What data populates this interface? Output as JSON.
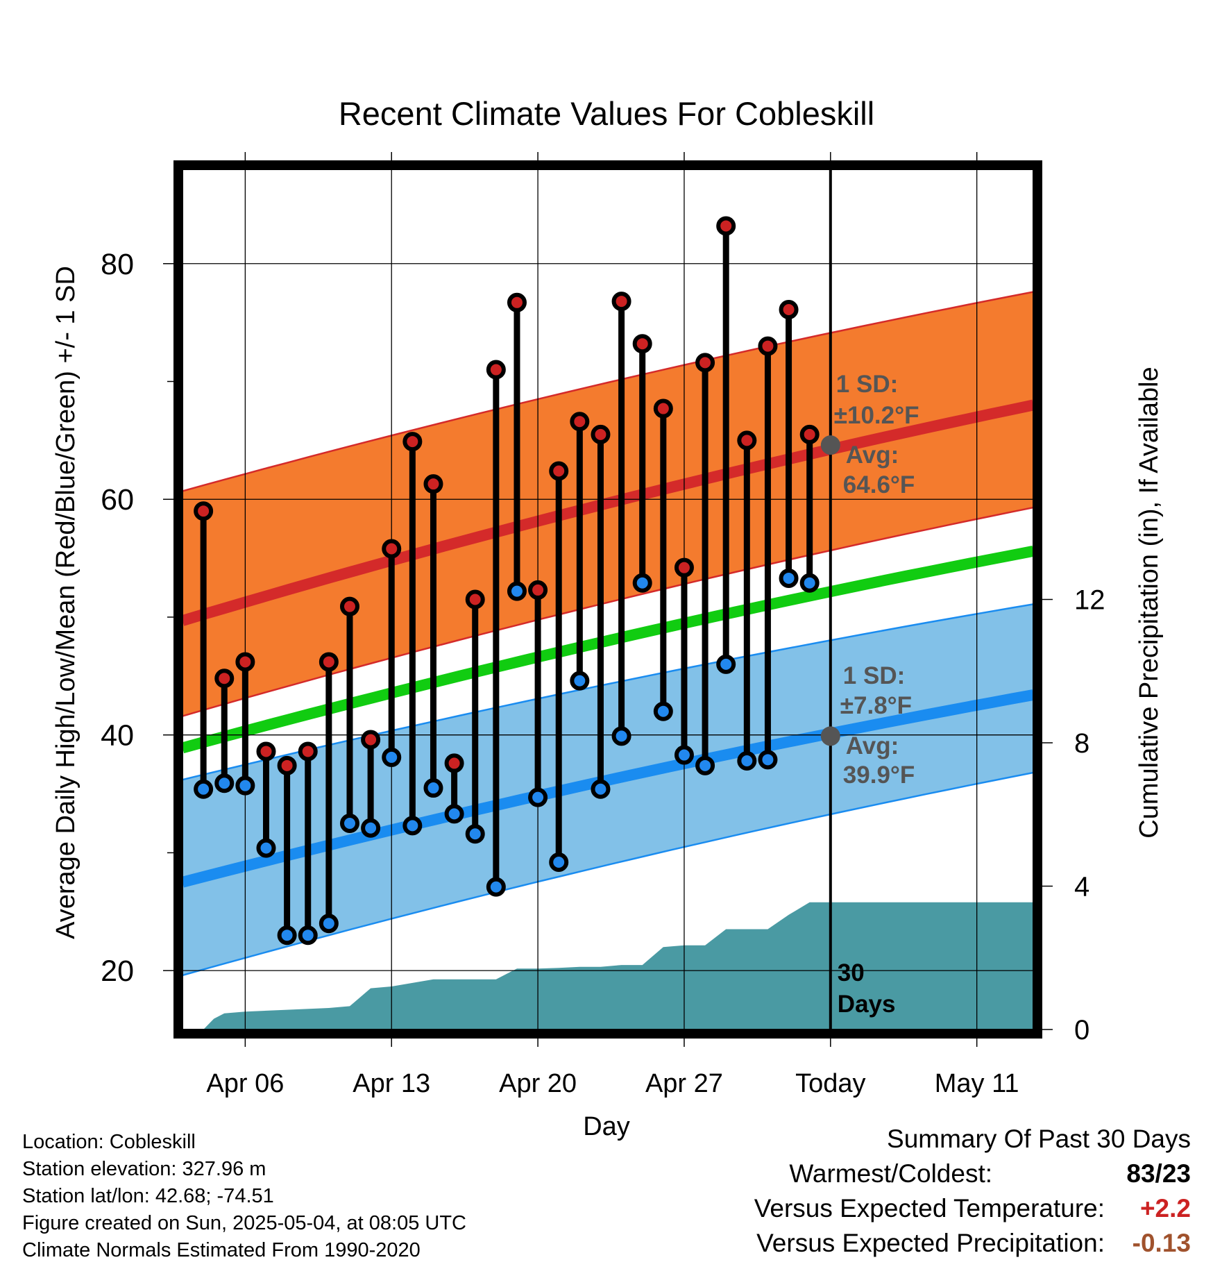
{
  "chart_data": {
    "type": "line",
    "title": "Recent Climate Values For Cobleskill",
    "xlabel": "Day",
    "ylabel": "Average Daily High/Low/Mean (Red/Blue/Green) +/- 1 SD",
    "y2label": "Cumulative Precipitation (in), If Available",
    "ylim": [
      15,
      88
    ],
    "y2lim": [
      0,
      24
    ],
    "x_tick_labels": [
      "Apr 06",
      "Apr 13",
      "Apr 20",
      "Apr 27",
      "Today",
      "May 11"
    ],
    "x_tick_days": [
      6,
      13,
      20,
      27,
      34,
      41
    ],
    "y_ticks": [
      20,
      40,
      60,
      80
    ],
    "y_minor_ticks": [
      30,
      50,
      70
    ],
    "y2_ticks": [
      0,
      4,
      8,
      12
    ],
    "xlim": [
      3.0,
      43.7
    ],
    "today_day": 34,
    "grid": true,
    "daily_x": [
      4,
      5,
      6,
      7,
      8,
      9,
      10,
      11,
      12,
      13,
      14,
      15,
      16,
      17,
      18,
      19,
      20,
      21,
      22,
      23,
      24,
      25,
      26,
      27,
      28,
      29,
      30,
      31,
      32,
      33
    ],
    "daily_high": [
      59,
      44.8,
      46.2,
      38.6,
      37.4,
      38.6,
      46.2,
      50.9,
      39.6,
      55.8,
      64.9,
      61.3,
      37.6,
      51.5,
      71,
      76.7,
      52.3,
      62.4,
      66.6,
      65.5,
      76.8,
      73.2,
      67.7,
      54.2,
      71.6,
      83.2,
      65,
      73,
      76.1,
      65.5
    ],
    "daily_low": [
      35.4,
      35.9,
      35.7,
      30.4,
      23,
      23,
      24,
      32.5,
      32.1,
      38.1,
      32.3,
      35.5,
      33.3,
      31.6,
      27.1,
      52.2,
      34.7,
      29.2,
      44.6,
      35.4,
      39.9,
      52.9,
      42,
      38.3,
      37.4,
      46,
      37.8,
      37.9,
      53.3,
      52.9
    ],
    "normal_x": [
      3.0,
      43.7
    ],
    "normal_high": [
      49.7,
      68.0
    ],
    "normal_high_upper": [
      60.7,
      77.6
    ],
    "normal_high_lower": [
      41.6,
      59.3
    ],
    "normal_mean": [
      38.9,
      55.6
    ],
    "normal_low": [
      27.5,
      43.4
    ],
    "normal_low_upper": [
      36.2,
      51.1
    ],
    "normal_low_lower": [
      19.6,
      36.8
    ],
    "precip_x": [
      3.0,
      4.0,
      4.5,
      5.0,
      6.0,
      8.0,
      10.0,
      11.0,
      12.0,
      13.0,
      14.0,
      15.0,
      16.0,
      17.0,
      18.0,
      19.0,
      20.0,
      21.0,
      22.0,
      23.0,
      24.0,
      25.0,
      26.0,
      27.0,
      28.0,
      29.0,
      30.0,
      31.0,
      32.0,
      33.0,
      34.0,
      43.7
    ],
    "precip_cum": [
      0.0,
      0.0,
      0.3,
      0.45,
      0.5,
      0.55,
      0.6,
      0.65,
      1.15,
      1.2,
      1.3,
      1.4,
      1.4,
      1.4,
      1.4,
      1.7,
      1.7,
      1.72,
      1.75,
      1.75,
      1.8,
      1.8,
      2.3,
      2.35,
      2.35,
      2.8,
      2.8,
      2.8,
      3.2,
      3.55,
      3.55,
      3.55
    ],
    "annotations": {
      "high_sd_line1": "1 SD:",
      "high_sd_line2": "±10.2°F",
      "high_avg_line1": "Avg:",
      "high_avg_line2": "64.6°F",
      "low_sd_line1": "1 SD:",
      "low_sd_line2": "±7.8°F",
      "low_avg_line1": "Avg:",
      "low_avg_line2": "39.9°F",
      "days_line1": "30",
      "days_line2": "Days"
    },
    "today_avg_high": 64.6,
    "today_avg_low": 39.9
  },
  "station_info": [
    "Location: Cobleskill",
    "Station elevation: 327.96 m",
    "Station lat/lon: 42.68; -74.51",
    "Figure created on Sun, 2025-05-04, at 08:05 UTC",
    "Climate Normals Estimated From 1990-2020"
  ],
  "summary": {
    "title": "Summary Of Past 30 Days",
    "warmest_coldest_label": "Warmest/Coldest:",
    "warmest_coldest_value": "83/23",
    "temp_label": "Versus Expected Temperature:",
    "temp_value": "+2.2",
    "precip_label": "Versus Expected Precipitation:",
    "precip_value": "-0.13"
  },
  "colors": {
    "high_band": "#f47b2e",
    "high_line": "#d42a2a",
    "low_band": "#82c1e8",
    "low_line": "#1a8cf0",
    "mean_line": "#11cc11",
    "precip": "#4a9aa3",
    "high_dot": "#cc2222",
    "low_dot": "#2288ee",
    "annotation": "#555555",
    "temp_positive": "#cc2222",
    "precip_negative": "#a0522d"
  }
}
